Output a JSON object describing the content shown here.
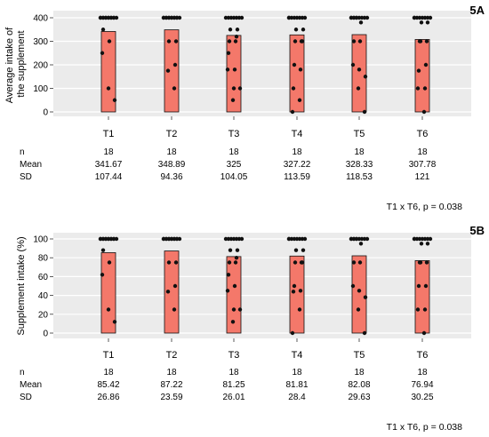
{
  "chart_data": [
    {
      "type": "bar",
      "panel_label": "5A",
      "ylabel": "Average intake of the supplement",
      "ylim": [
        0,
        400
      ],
      "yticks": [
        0,
        100,
        200,
        300,
        400
      ],
      "categories": [
        "T1",
        "T2",
        "T3",
        "T4",
        "T5",
        "T6"
      ],
      "values": [
        341.67,
        348.89,
        325,
        327.22,
        328.33,
        307.78
      ],
      "bar_color": "#f4786a",
      "grid": true,
      "points": [
        [
          400,
          400,
          400,
          400,
          400,
          400,
          400,
          400,
          400,
          400,
          400,
          400,
          400,
          350,
          300,
          250,
          100,
          50
        ],
        [
          400,
          400,
          400,
          400,
          400,
          400,
          400,
          400,
          400,
          400,
          400,
          400,
          400,
          300,
          300,
          200,
          175,
          100
        ],
        [
          400,
          400,
          400,
          400,
          400,
          400,
          400,
          350,
          350,
          320,
          300,
          300,
          250,
          180,
          180,
          100,
          100,
          50
        ],
        [
          400,
          400,
          400,
          400,
          400,
          400,
          400,
          400,
          350,
          350,
          300,
          300,
          300,
          200,
          180,
          100,
          50,
          0
        ],
        [
          400,
          400,
          400,
          400,
          400,
          400,
          400,
          400,
          400,
          400,
          380,
          300,
          300,
          200,
          180,
          150,
          100,
          0
        ],
        [
          400,
          400,
          400,
          400,
          400,
          400,
          400,
          400,
          380,
          380,
          300,
          300,
          300,
          200,
          175,
          100,
          100,
          0
        ]
      ],
      "stats": {
        "row_labels": [
          "n",
          "Mean",
          "SD"
        ],
        "n": [
          "18",
          "18",
          "18",
          "18",
          "18",
          "18"
        ],
        "mean": [
          "341.67",
          "348.89",
          "325",
          "327.22",
          "328.33",
          "307.78"
        ],
        "sd": [
          "107.44",
          "94.36",
          "104.05",
          "113.59",
          "118.53",
          "121"
        ]
      },
      "annotation": "T1 x T6, p = 0.038"
    },
    {
      "type": "bar",
      "panel_label": "5B",
      "ylabel": "Supplement intake (%)",
      "ylim": [
        0,
        100
      ],
      "yticks": [
        0,
        20,
        40,
        60,
        80,
        100
      ],
      "categories": [
        "T1",
        "T2",
        "T3",
        "T4",
        "T5",
        "T6"
      ],
      "values": [
        85.42,
        87.22,
        81.25,
        81.81,
        82.08,
        76.94
      ],
      "bar_color": "#f4786a",
      "grid": true,
      "points": [
        [
          100,
          100,
          100,
          100,
          100,
          100,
          100,
          100,
          100,
          100,
          100,
          100,
          100,
          88,
          75,
          62,
          25,
          12
        ],
        [
          100,
          100,
          100,
          100,
          100,
          100,
          100,
          100,
          100,
          100,
          100,
          100,
          100,
          75,
          75,
          50,
          44,
          25
        ],
        [
          100,
          100,
          100,
          100,
          100,
          100,
          100,
          88,
          88,
          80,
          75,
          75,
          62,
          50,
          45,
          25,
          25,
          12
        ],
        [
          100,
          100,
          100,
          100,
          100,
          100,
          100,
          100,
          88,
          88,
          75,
          75,
          75,
          50,
          45,
          44,
          25,
          0
        ],
        [
          100,
          100,
          100,
          100,
          100,
          100,
          100,
          100,
          100,
          100,
          95,
          75,
          75,
          50,
          45,
          38,
          25,
          0
        ],
        [
          100,
          100,
          100,
          100,
          100,
          100,
          100,
          100,
          95,
          95,
          75,
          75,
          75,
          50,
          50,
          25,
          25,
          0
        ]
      ],
      "stats": {
        "row_labels": [
          "n",
          "Mean",
          "SD"
        ],
        "n": [
          "18",
          "18",
          "18",
          "18",
          "18",
          "18"
        ],
        "mean": [
          "85.42",
          "87.22",
          "81.25",
          "81.81",
          "82.08",
          "76.94"
        ],
        "sd": [
          "26.86",
          "23.59",
          "26.01",
          "28.4",
          "29.63",
          "30.25"
        ]
      },
      "annotation": "T1 x T6, p = 0.038"
    }
  ]
}
